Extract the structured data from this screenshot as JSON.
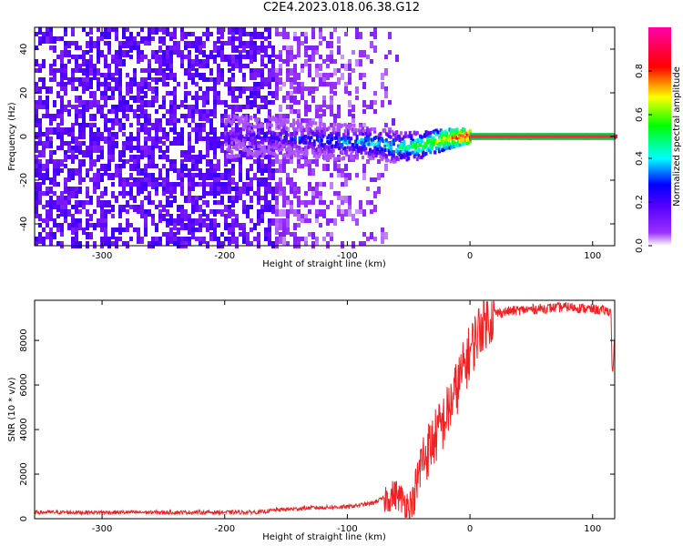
{
  "title": "C2E4.2023.018.06.38.G12",
  "chart_data": [
    {
      "type": "heatmap",
      "xlabel": "Height of straight line (km)",
      "ylabel": "Frequency (Hz)",
      "xlim": [
        -355,
        118
      ],
      "ylim": [
        -50,
        50
      ],
      "xticks": [
        -300,
        -200,
        -100,
        0,
        100
      ],
      "yticks": [
        -40,
        -20,
        0,
        20,
        40
      ],
      "grid": false,
      "colorbar": {
        "label": "Normalized spectral amplitude",
        "range": [
          0.0,
          1.0
        ],
        "ticks": [
          "0.0",
          "0.2",
          "0.4",
          "0.6",
          "0.8"
        ],
        "colors": [
          "#ffffff",
          "#7f00ff",
          "#0000ff",
          "#00ffff",
          "#00ff00",
          "#ffff00",
          "#ff0000",
          "#ff00ff"
        ]
      },
      "signal_track": [
        {
          "x": -200,
          "f": 0,
          "amp": 0.15
        },
        {
          "x": -160,
          "f": 0,
          "amp": 0.25
        },
        {
          "x": -120,
          "f": -2,
          "amp": 0.3
        },
        {
          "x": -80,
          "f": -3,
          "amp": 0.4
        },
        {
          "x": -60,
          "f": -5,
          "amp": 0.45
        },
        {
          "x": -40,
          "f": -4,
          "amp": 0.55
        },
        {
          "x": -20,
          "f": -1,
          "amp": 0.7
        },
        {
          "x": -5,
          "f": 0,
          "amp": 0.85
        },
        {
          "x": 0,
          "f": 0,
          "amp": 0.9
        },
        {
          "x": 118,
          "f": 0,
          "amp": 0.95
        }
      ]
    },
    {
      "type": "line",
      "xlabel": "Height of straight line (km)",
      "ylabel": "SNR (10 * v/v)",
      "xlim": [
        -355,
        118
      ],
      "ylim": [
        0,
        9800
      ],
      "xticks": [
        -300,
        -200,
        -100,
        0,
        100
      ],
      "yticks": [
        0,
        2000,
        4000,
        6000,
        8000
      ],
      "grid": false,
      "color": "#ee2222",
      "series": [
        {
          "x": [
            -355,
            -300,
            -250,
            -200,
            -170,
            -160,
            -130,
            -100,
            -80,
            -70,
            -60,
            -50,
            -45,
            -40,
            -30,
            -20,
            -10,
            0,
            10,
            20,
            30,
            50,
            80,
            100,
            115,
            116,
            118
          ],
          "y": [
            250,
            250,
            250,
            250,
            260,
            350,
            450,
            500,
            650,
            900,
            1100,
            600,
            900,
            2500,
            3500,
            4500,
            6000,
            7500,
            8800,
            9200,
            9300,
            9400,
            9500,
            9400,
            9300,
            6400,
            8000
          ]
        }
      ]
    }
  ]
}
